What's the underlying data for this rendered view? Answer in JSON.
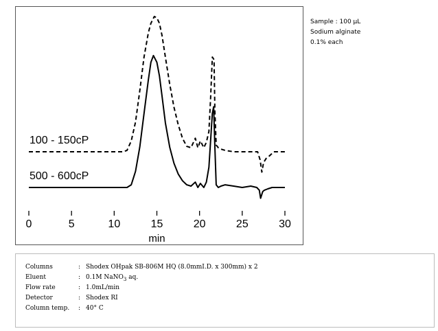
{
  "chart_data": {
    "type": "line",
    "title": "",
    "xlabel": "min",
    "ylabel": "",
    "xlim": [
      0,
      30
    ],
    "xticks": [
      0,
      5,
      10,
      15,
      20,
      25,
      30
    ],
    "grid": false,
    "series": [
      {
        "name": "100 - 150cP",
        "style": "dashed",
        "color": "#000000",
        "x": [
          0.0,
          11.0,
          11.5,
          12.0,
          12.5,
          13.0,
          13.5,
          14.0,
          14.3,
          14.7,
          15.0,
          15.3,
          15.6,
          16.0,
          16.5,
          17.0,
          17.5,
          18.0,
          18.5,
          19.0,
          19.5,
          19.8,
          20.1,
          20.5,
          20.8,
          21.1,
          21.3,
          21.5,
          21.7,
          21.8,
          21.95,
          22.2,
          22.5,
          23.0,
          24.0,
          25.0,
          26.0,
          26.8,
          27.1,
          27.3,
          27.5,
          27.8,
          28.2,
          28.7,
          29.0,
          30.0
        ],
        "y": [
          0.0,
          0.0,
          0.01,
          0.08,
          0.22,
          0.45,
          0.7,
          0.88,
          0.95,
          1.0,
          0.99,
          0.95,
          0.86,
          0.7,
          0.5,
          0.33,
          0.2,
          0.1,
          0.04,
          0.03,
          0.1,
          0.03,
          0.08,
          0.03,
          0.07,
          0.15,
          0.4,
          0.7,
          0.68,
          0.3,
          0.05,
          0.03,
          0.02,
          0.01,
          0.0,
          0.0,
          0.0,
          0.0,
          -0.06,
          -0.15,
          -0.08,
          -0.05,
          -0.03,
          0.0,
          0.0,
          0.0
        ]
      },
      {
        "name": "500 - 600cP",
        "style": "solid",
        "color": "#000000",
        "x": [
          0.0,
          11.5,
          12.0,
          12.5,
          13.0,
          13.5,
          14.0,
          14.3,
          14.6,
          15.0,
          15.3,
          15.6,
          16.0,
          16.5,
          17.0,
          17.5,
          18.0,
          18.5,
          19.0,
          19.5,
          19.8,
          20.1,
          20.5,
          20.8,
          21.1,
          21.3,
          21.5,
          21.65,
          21.8,
          21.95,
          22.2,
          22.5,
          23.0,
          24.0,
          25.0,
          26.0,
          26.7,
          27.0,
          27.15,
          27.4,
          27.6,
          28.0,
          28.5,
          29.0,
          30.0
        ],
        "y": [
          0.0,
          0.0,
          0.02,
          0.12,
          0.3,
          0.55,
          0.8,
          0.93,
          0.98,
          0.93,
          0.83,
          0.68,
          0.48,
          0.3,
          0.18,
          0.1,
          0.05,
          0.02,
          0.01,
          0.04,
          0.0,
          0.03,
          0.0,
          0.04,
          0.15,
          0.35,
          0.55,
          0.6,
          0.3,
          0.02,
          0.0,
          0.01,
          0.02,
          0.01,
          0.0,
          0.01,
          0.0,
          -0.02,
          -0.08,
          -0.03,
          -0.02,
          -0.01,
          0.0,
          0.0,
          0.0
        ]
      }
    ]
  },
  "sample_notes": [
    "Sample : 100 μL",
    "Sodium alginate",
    "0.1% each"
  ],
  "conditions": [
    {
      "label": "Columns",
      "value": "Shodex OHpak SB-806M HQ (8.0mmI.D. x 300mm) x 2"
    },
    {
      "label": "Eluent",
      "value_prefix": "0.1M NaNO",
      "value_sub": "3",
      "value_suffix": " aq."
    },
    {
      "label": "Flow rate",
      "value": "1.0mL/min"
    },
    {
      "label": "Detector",
      "value": "Shodex RI"
    },
    {
      "label": "Column temp.",
      "value": "40° C"
    }
  ]
}
